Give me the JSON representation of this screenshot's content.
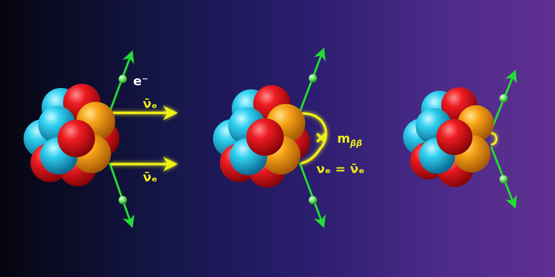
{
  "labels": {
    "electron": "e⁻",
    "antineutrino_1": "ν̄ₑ",
    "antineutrino_2": "ν̄ₑ",
    "effective_mass": "m",
    "effective_mass_sub": "ββ",
    "majorana_relation": "νₑ = ν̄ₑ"
  },
  "colors": {
    "proton": "#e8141e",
    "neutron_cyan": "#2fd0f0",
    "neutron_orange": "#f7a418",
    "electron_line": "#22dd33",
    "neutrino_arrow": "#f0f016",
    "glow": "#ffff80"
  },
  "icons": {
    "nucleus": "nucleus-icon",
    "electron": "electron-dot-icon",
    "neutrino": "neutrino-arrow-icon",
    "vertex": "vertex-cross-icon"
  }
}
